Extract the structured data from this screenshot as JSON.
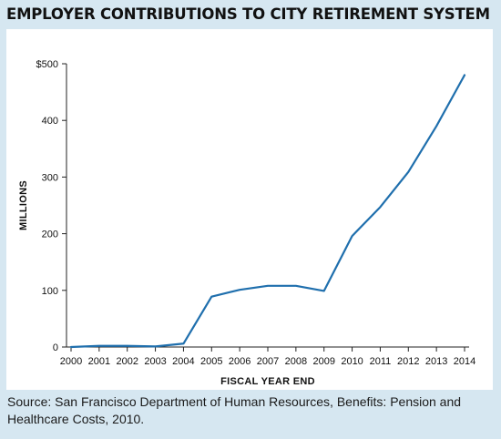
{
  "title": "EMPLOYER CONTRIBUTIONS TO CITY RETIREMENT SYSTEM",
  "source": "Source: San Francisco Department of Human Resources, Benefits: Pension and Healthcare Costs, 2010.",
  "colors": {
    "background": "#d6e7f1",
    "panel": "#ffffff",
    "line": "#1f6fad",
    "axis": "#222222"
  },
  "chart_data": {
    "type": "line",
    "title": "EMPLOYER CONTRIBUTIONS TO CITY RETIREMENT SYSTEM",
    "xlabel": "FISCAL YEAR END",
    "ylabel": "MILLIONS",
    "x": [
      "2000",
      "2001",
      "2002",
      "2003",
      "2004",
      "2005",
      "2006",
      "2007",
      "2008",
      "2009",
      "2010",
      "2011",
      "2012",
      "2013",
      "2014"
    ],
    "series": [
      {
        "values": [
          0,
          2,
          2,
          1,
          6,
          89,
          101,
          108,
          108,
          99,
          196,
          247,
          309,
          390,
          480
        ]
      }
    ],
    "yticks": [
      0,
      100,
      200,
      300,
      400,
      500
    ],
    "ytick_labels": [
      "0",
      "100",
      "200",
      "300",
      "400",
      "$500"
    ],
    "ylim": [
      0,
      500
    ],
    "grid": false
  }
}
